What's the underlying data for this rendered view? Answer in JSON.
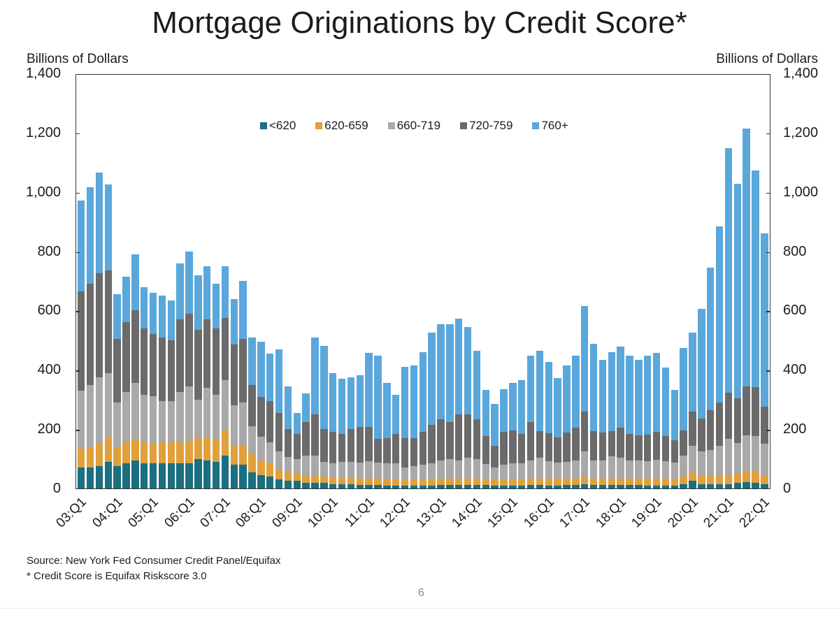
{
  "page": {
    "title": "Mortgage Originations by Credit Score*",
    "left_axis_unit": "Billions of Dollars",
    "right_axis_unit": "Billions of Dollars",
    "source": "Source: New York Fed Consumer Credit Panel/Equifax",
    "footnote": "* Credit Score is Equifax Riskscore 3.0",
    "page_number": "6"
  },
  "colors": {
    "<620": "#1a6f80",
    "620-659": "#e0a03c",
    "660-719": "#a9a9a9",
    "720-759": "#6b6b6b",
    "760+": "#5aa7dc"
  },
  "chart_data": {
    "type": "bar",
    "stacked": true,
    "title": "Mortgage Originations by Credit Score*",
    "xlabel": "",
    "ylabel": "Billions of Dollars",
    "ylabel_right": "Billions of Dollars",
    "ylim": [
      0,
      1400
    ],
    "yticks": [
      0,
      200,
      400,
      600,
      800,
      1000,
      1200,
      1400
    ],
    "ytick_labels": [
      "0",
      "200",
      "400",
      "600",
      "800",
      "1,000",
      "1,200",
      "1,400"
    ],
    "xtick_labels": [
      "03:Q1",
      "04:Q1",
      "05:Q1",
      "06:Q1",
      "07:Q1",
      "08:Q1",
      "09:Q1",
      "10:Q1",
      "11:Q1",
      "12:Q1",
      "13:Q1",
      "14:Q1",
      "15:Q1",
      "16:Q1",
      "17:Q1",
      "18:Q1",
      "19:Q1",
      "20:Q1",
      "21:Q1",
      "22:Q1"
    ],
    "legend": [
      "<620",
      "620-659",
      "660-719",
      "720-759",
      "760+"
    ],
    "legend_position": "top-center inside",
    "grid": false,
    "categories": [
      "03:Q1",
      "03:Q2",
      "03:Q3",
      "03:Q4",
      "04:Q1",
      "04:Q2",
      "04:Q3",
      "04:Q4",
      "05:Q1",
      "05:Q2",
      "05:Q3",
      "05:Q4",
      "06:Q1",
      "06:Q2",
      "06:Q3",
      "06:Q4",
      "07:Q1",
      "07:Q2",
      "07:Q3",
      "07:Q4",
      "08:Q1",
      "08:Q2",
      "08:Q3",
      "08:Q4",
      "09:Q1",
      "09:Q2",
      "09:Q3",
      "09:Q4",
      "10:Q1",
      "10:Q2",
      "10:Q3",
      "10:Q4",
      "11:Q1",
      "11:Q2",
      "11:Q3",
      "11:Q4",
      "12:Q1",
      "12:Q2",
      "12:Q3",
      "12:Q4",
      "13:Q1",
      "13:Q2",
      "13:Q3",
      "13:Q4",
      "14:Q1",
      "14:Q2",
      "14:Q3",
      "14:Q4",
      "15:Q1",
      "15:Q2",
      "15:Q3",
      "15:Q4",
      "16:Q1",
      "16:Q2",
      "16:Q3",
      "16:Q4",
      "17:Q1",
      "17:Q2",
      "17:Q3",
      "17:Q4",
      "18:Q1",
      "18:Q2",
      "18:Q3",
      "18:Q4",
      "19:Q1",
      "19:Q2",
      "19:Q3",
      "19:Q4",
      "20:Q1",
      "20:Q2",
      "20:Q3",
      "20:Q4",
      "21:Q1",
      "21:Q2",
      "21:Q3",
      "21:Q4",
      "22:Q1"
    ],
    "series": [
      {
        "name": "<620",
        "values": [
          70,
          70,
          75,
          90,
          75,
          85,
          95,
          85,
          85,
          85,
          85,
          85,
          85,
          100,
          95,
          90,
          110,
          80,
          80,
          55,
          45,
          40,
          30,
          25,
          25,
          20,
          20,
          20,
          15,
          15,
          15,
          12,
          12,
          12,
          10,
          10,
          10,
          10,
          10,
          10,
          12,
          12,
          12,
          12,
          12,
          12,
          10,
          10,
          10,
          10,
          12,
          12,
          10,
          10,
          12,
          12,
          15,
          12,
          12,
          12,
          12,
          12,
          12,
          10,
          10,
          10,
          10,
          15,
          25,
          15,
          15,
          15,
          15,
          18,
          22,
          20,
          15
        ]
      },
      {
        "name": "620-659",
        "values": [
          65,
          70,
          75,
          85,
          65,
          70,
          70,
          70,
          65,
          70,
          70,
          70,
          75,
          70,
          75,
          75,
          85,
          65,
          65,
          60,
          50,
          45,
          35,
          30,
          25,
          25,
          25,
          20,
          20,
          20,
          20,
          20,
          20,
          20,
          20,
          20,
          20,
          20,
          20,
          20,
          22,
          22,
          22,
          22,
          22,
          20,
          20,
          20,
          20,
          20,
          22,
          22,
          22,
          22,
          22,
          22,
          25,
          22,
          22,
          22,
          22,
          22,
          22,
          22,
          22,
          22,
          22,
          25,
          30,
          30,
          30,
          30,
          32,
          35,
          38,
          38,
          30
        ]
      },
      {
        "name": "660-719",
        "values": [
          195,
          210,
          225,
          215,
          150,
          170,
          190,
          160,
          160,
          140,
          140,
          170,
          185,
          130,
          170,
          150,
          170,
          135,
          145,
          95,
          80,
          70,
          60,
          50,
          50,
          65,
          65,
          50,
          50,
          55,
          55,
          55,
          60,
          55,
          55,
          55,
          40,
          45,
          50,
          55,
          60,
          65,
          60,
          70,
          65,
          50,
          40,
          50,
          55,
          55,
          60,
          70,
          60,
          55,
          55,
          60,
          85,
          60,
          60,
          75,
          70,
          60,
          60,
          60,
          65,
          60,
          55,
          70,
          90,
          80,
          85,
          100,
          120,
          100,
          120,
          120,
          105
        ]
      },
      {
        "name": "720-759",
        "values": [
          335,
          340,
          350,
          345,
          215,
          235,
          245,
          225,
          210,
          215,
          205,
          245,
          245,
          235,
          230,
          225,
          210,
          205,
          215,
          140,
          135,
          140,
          130,
          95,
          85,
          115,
          140,
          110,
          105,
          95,
          110,
          120,
          115,
          80,
          85,
          100,
          100,
          95,
          110,
          130,
          140,
          125,
          155,
          145,
          135,
          95,
          75,
          110,
          110,
          100,
          130,
          90,
          95,
          85,
          100,
          110,
          135,
          100,
          95,
          85,
          100,
          90,
          85,
          90,
          95,
          85,
          75,
          85,
          115,
          110,
          135,
          145,
          155,
          150,
          165,
          165,
          125
        ]
      },
      {
        "name": "760+",
        "values": [
          305,
          325,
          340,
          290,
          150,
          155,
          190,
          140,
          140,
          140,
          135,
          190,
          210,
          185,
          180,
          150,
          175,
          155,
          195,
          160,
          185,
          160,
          215,
          145,
          70,
          95,
          260,
          280,
          200,
          185,
          175,
          175,
          250,
          280,
          185,
          130,
          240,
          245,
          270,
          310,
          320,
          330,
          325,
          295,
          230,
          155,
          140,
          145,
          160,
          180,
          225,
          270,
          240,
          200,
          225,
          245,
          355,
          295,
          245,
          265,
          275,
          265,
          255,
          265,
          265,
          230,
          170,
          280,
          265,
          370,
          480,
          595,
          825,
          725,
          870,
          730,
          585
        ]
      }
    ],
    "totals": [
      970,
      1015,
      1065,
      1025,
      655,
      715,
      790,
      680,
      660,
      650,
      635,
      760,
      800,
      720,
      750,
      690,
      750,
      640,
      700,
      510,
      495,
      455,
      470,
      345,
      255,
      320,
      500,
      480,
      390,
      370,
      375,
      382,
      457,
      447,
      355,
      315,
      410,
      415,
      460,
      525,
      554,
      554,
      574,
      544,
      464,
      332,
      285,
      335,
      355,
      365,
      449,
      464,
      427,
      372,
      414,
      449,
      615,
      489,
      434,
      459,
      479,
      449,
      434,
      447,
      457,
      407,
      332,
      475,
      525,
      605,
      745,
      885,
      1147,
      1023,
      1215,
      1073,
      860
    ]
  }
}
